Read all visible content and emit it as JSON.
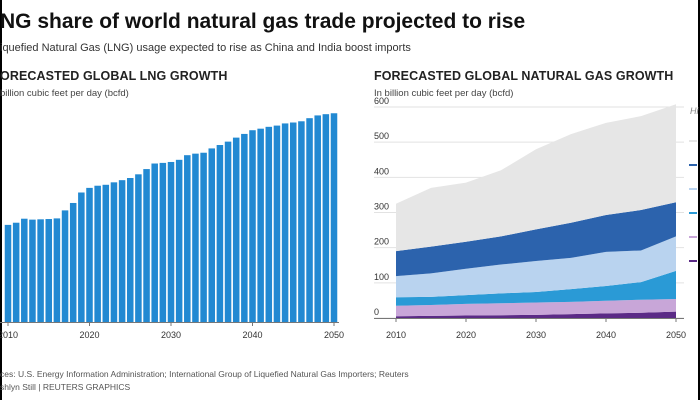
{
  "headline": "NG share of world natural gas trade projected to rise",
  "subheadline": "iquefied Natural Gas (LNG) usage expected to rise as China and India boost imports",
  "footer": {
    "sources": "ces: U.S. Energy Information Administration; International Group of Liquefied Natural Gas Importers; Reuters",
    "credit": "shlyn Still | REUTERS GRAPHICS"
  },
  "colors": {
    "lng_bar": "#2289d2",
    "grid": "#e2e2e2",
    "axis": "#777777"
  },
  "charts": {
    "lng": {
      "title": "ORECASTED GLOBAL LNG GROWTH",
      "unit": "billion cubic feet per day (bcfd)"
    },
    "gas": {
      "title": "FORECASTED GLOBAL NATURAL GAS GROWTH",
      "unit": "In billion cubic feet per day (bcfd)",
      "legend_title": "Hi"
    }
  },
  "chart_data": [
    {
      "type": "bar",
      "title": "ORECASTED GLOBAL LNG GROWTH",
      "ylabel": "billion cubic feet per day (bcfd)",
      "x_ticks": [
        2010,
        2020,
        2030,
        2040,
        2050
      ],
      "ylim": [
        0,
        72
      ],
      "categories": [
        2010,
        2011,
        2012,
        2013,
        2014,
        2015,
        2016,
        2017,
        2018,
        2019,
        2020,
        2021,
        2022,
        2023,
        2024,
        2025,
        2026,
        2027,
        2028,
        2029,
        2030,
        2031,
        2032,
        2033,
        2034,
        2035,
        2036,
        2037,
        2038,
        2039,
        2040,
        2041,
        2042,
        2043,
        2044,
        2045,
        2046,
        2047,
        2048,
        2049,
        2050
      ],
      "values": [
        31.5,
        32.2,
        33.5,
        33.2,
        33.3,
        33.4,
        33.6,
        36.2,
        38.6,
        42.0,
        43.5,
        44.2,
        44.5,
        45.3,
        46.0,
        46.7,
        47.9,
        49.6,
        51.4,
        51.6,
        51.9,
        52.6,
        54.1,
        54.6,
        54.9,
        56.3,
        57.4,
        58.5,
        59.8,
        61.0,
        62.2,
        62.7,
        63.3,
        63.7,
        64.4,
        64.7,
        65.1,
        66.1,
        67.0,
        67.4,
        67.7
      ]
    },
    {
      "type": "area",
      "title": "FORECASTED GLOBAL NATURAL GAS GROWTH",
      "ylabel": "In billion cubic feet per day (bcfd)",
      "x": [
        2010,
        2015,
        2020,
        2025,
        2030,
        2035,
        2040,
        2045,
        2050
      ],
      "x_ticks": [
        2010,
        2020,
        2030,
        2040,
        2050
      ],
      "y_ticks": [
        0,
        100,
        200,
        300,
        400,
        500,
        600
      ],
      "ylim": [
        0,
        600
      ],
      "stacked": true,
      "legend_placement": "right",
      "series": [
        {
          "color": "#5b2a86",
          "values": [
            5,
            6,
            7,
            8,
            9,
            11,
            13,
            15,
            18
          ]
        },
        {
          "color": "#c8a6d8",
          "values": [
            30,
            31,
            33,
            34,
            35,
            35,
            36,
            37,
            36
          ]
        },
        {
          "color": "#2a9ad6",
          "values": [
            24,
            23,
            25,
            28,
            30,
            36,
            42,
            50,
            80
          ]
        },
        {
          "color": "#b9d3ef",
          "values": [
            60,
            67,
            75,
            82,
            88,
            89,
            97,
            90,
            98
          ]
        },
        {
          "color": "#2c63ad",
          "values": [
            71,
            76,
            77,
            80,
            90,
            100,
            105,
            115,
            97
          ]
        },
        {
          "color": "#e6e6e6",
          "values": [
            135,
            167,
            168,
            188,
            228,
            252,
            262,
            267,
            279
          ]
        }
      ]
    }
  ]
}
